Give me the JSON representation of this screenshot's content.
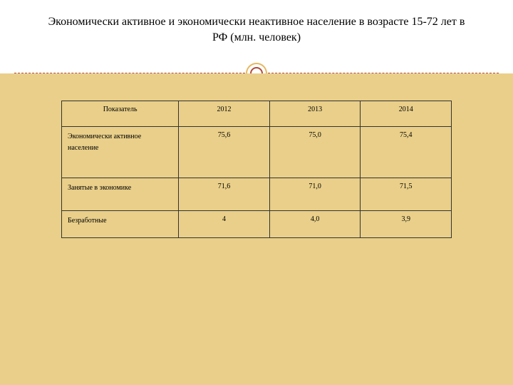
{
  "title": "Экономически активное и экономически неактивное население в возрасте 15-72 лет в РФ (млн. человек)",
  "colors": {
    "background_top": "#ffffff",
    "background_bottom": "#e9cf89",
    "dashed_line": "#b24a3a",
    "circle_outer": "#e6b860",
    "circle_inner": "#b24a3a",
    "table_border": "#333333",
    "text": "#000000"
  },
  "table": {
    "type": "table",
    "columns": [
      "Показатель",
      "2012",
      "2013",
      "2014"
    ],
    "column_widths": [
      "30%",
      "23.3%",
      "23.3%",
      "23.3%"
    ],
    "rows": [
      {
        "label": "Экономически активное население",
        "values": [
          "75,6",
          "75,0",
          "75,4"
        ],
        "height_class": "row-tall"
      },
      {
        "label": "Занятые в экономике",
        "values": [
          "71,6",
          "71,0",
          "71,5"
        ],
        "height_class": "row-med"
      },
      {
        "label": "Безработные",
        "values": [
          "4",
          "4,0",
          "3,9"
        ],
        "height_class": "row-short"
      }
    ],
    "header_fontsize": 10,
    "cell_fontsize": 10
  }
}
